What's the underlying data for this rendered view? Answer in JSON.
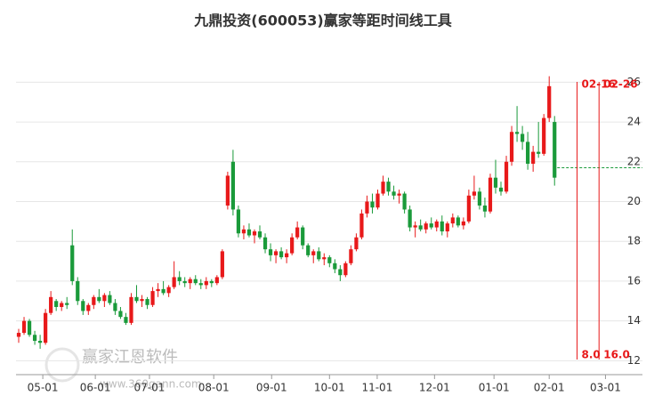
{
  "chart_data": {
    "type": "candlestick",
    "title": "九鼎投资(600053)赢家等距时间线工具",
    "up_color": "#e8191a",
    "down_color": "#1a9a3a",
    "open": [
      13.2,
      13.4,
      14.0,
      13.3,
      13.0,
      12.9,
      14.4,
      15.0,
      14.7,
      14.9,
      17.8,
      16.0,
      15.0,
      14.5,
      14.8,
      15.2,
      15.0,
      15.3,
      14.9,
      14.5,
      14.2,
      13.9,
      15.2,
      15.0,
      15.1,
      14.8,
      15.5,
      15.6,
      15.4,
      15.7,
      16.2,
      16.0,
      15.9,
      16.1,
      15.9,
      15.8,
      16.0,
      15.9,
      16.2,
      19.8,
      22.0,
      19.6,
      18.4,
      18.6,
      18.3,
      18.5,
      18.2,
      17.6,
      17.3,
      17.5,
      17.2,
      17.4,
      18.2,
      18.7,
      17.8,
      17.3,
      17.5,
      17.1,
      17.2,
      16.9,
      16.6,
      16.3,
      16.9,
      17.6,
      18.2,
      19.4,
      20.0,
      19.7,
      20.4,
      21.0,
      20.5,
      20.3,
      20.4,
      19.6,
      18.7,
      18.8,
      18.6,
      18.9,
      18.7,
      19.0,
      18.5,
      18.9,
      19.2,
      18.8,
      19.0,
      20.3,
      20.5,
      19.8,
      19.5,
      21.2,
      20.7,
      20.5,
      22.0,
      23.5,
      23.4,
      23.0,
      21.9,
      22.5,
      22.4,
      24.2,
      24.0
    ],
    "high": [
      13.6,
      14.2,
      14.1,
      13.5,
      13.3,
      14.6,
      15.5,
      15.1,
      15.0,
      15.2,
      18.6,
      16.2,
      15.1,
      14.9,
      15.3,
      15.6,
      15.4,
      15.5,
      15.1,
      14.7,
      14.4,
      15.4,
      15.8,
      15.3,
      15.2,
      15.7,
      15.9,
      16.0,
      15.8,
      17.0,
      16.5,
      16.2,
      16.2,
      16.3,
      16.1,
      16.2,
      16.1,
      16.3,
      17.6,
      21.5,
      22.6,
      19.8,
      18.8,
      18.9,
      18.6,
      18.8,
      18.4,
      17.9,
      17.6,
      17.7,
      17.6,
      18.4,
      19.0,
      18.8,
      17.9,
      17.6,
      17.7,
      17.4,
      17.3,
      17.1,
      16.8,
      17.0,
      17.8,
      18.4,
      19.6,
      20.3,
      20.4,
      20.6,
      21.3,
      21.2,
      20.8,
      20.6,
      20.5,
      19.8,
      19.0,
      19.1,
      19.0,
      19.2,
      19.1,
      19.3,
      19.0,
      19.4,
      19.3,
      19.2,
      20.6,
      21.3,
      20.7,
      20.2,
      21.4,
      22.1,
      21.0,
      22.3,
      23.8,
      24.8,
      23.8,
      23.5,
      22.8,
      24.0,
      24.4,
      26.3,
      24.3
    ],
    "low": [
      12.9,
      13.3,
      13.2,
      12.8,
      12.6,
      12.8,
      14.3,
      14.5,
      14.5,
      14.6,
      15.8,
      14.8,
      14.3,
      14.3,
      14.6,
      14.9,
      14.7,
      14.8,
      14.3,
      14.1,
      13.8,
      13.8,
      14.9,
      14.7,
      14.6,
      14.7,
      15.2,
      15.3,
      15.2,
      15.6,
      15.8,
      15.7,
      15.6,
      15.8,
      15.6,
      15.6,
      15.7,
      15.8,
      16.1,
      19.6,
      19.3,
      18.2,
      18.1,
      18.2,
      17.9,
      18.1,
      17.4,
      17.0,
      16.9,
      17.1,
      16.9,
      17.3,
      18.1,
      17.6,
      17.2,
      16.9,
      17.0,
      16.8,
      16.7,
      16.4,
      16.0,
      16.2,
      16.8,
      17.5,
      18.1,
      19.2,
      19.4,
      19.6,
      20.3,
      20.3,
      20.1,
      19.9,
      19.4,
      18.5,
      18.2,
      18.5,
      18.4,
      18.6,
      18.5,
      18.3,
      18.2,
      18.7,
      18.7,
      18.6,
      18.9,
      20.1,
      19.6,
      19.2,
      19.4,
      20.4,
      20.3,
      20.4,
      21.8,
      23.0,
      22.6,
      21.6,
      21.5,
      22.2,
      22.3,
      24.0,
      20.8
    ],
    "close": [
      13.4,
      14.0,
      13.3,
      13.0,
      12.9,
      14.4,
      15.2,
      14.7,
      14.9,
      14.8,
      16.0,
      15.0,
      14.5,
      14.8,
      15.2,
      15.0,
      15.3,
      14.9,
      14.5,
      14.2,
      13.9,
      15.2,
      15.0,
      15.1,
      14.8,
      15.5,
      15.6,
      15.4,
      15.7,
      16.2,
      16.0,
      15.9,
      16.1,
      15.9,
      15.8,
      16.0,
      15.9,
      16.2,
      17.5,
      21.3,
      19.6,
      18.4,
      18.6,
      18.3,
      18.5,
      18.2,
      17.6,
      17.3,
      17.5,
      17.2,
      17.4,
      18.2,
      18.7,
      17.8,
      17.3,
      17.5,
      17.1,
      17.2,
      16.9,
      16.6,
      16.3,
      16.9,
      17.6,
      18.2,
      19.4,
      20.0,
      19.7,
      20.4,
      21.0,
      20.5,
      20.3,
      20.4,
      19.6,
      18.7,
      18.8,
      18.6,
      18.9,
      18.7,
      19.0,
      18.5,
      18.9,
      19.2,
      18.8,
      19.0,
      20.3,
      20.5,
      19.8,
      19.5,
      21.2,
      20.7,
      20.5,
      22.0,
      23.5,
      23.4,
      23.0,
      21.9,
      22.5,
      22.4,
      24.2,
      25.8,
      21.2
    ],
    "xlim": [
      0,
      116.9
    ],
    "xticks": [
      {
        "value": 5.0,
        "label": "05-01"
      },
      {
        "value": 14.8,
        "label": "06-01"
      },
      {
        "value": 24.9,
        "label": "07-01"
      },
      {
        "value": 36.9,
        "label": "08-01"
      },
      {
        "value": 47.7,
        "label": "09-01"
      },
      {
        "value": 58.5,
        "label": "10-01"
      },
      {
        "value": 67.4,
        "label": "11-01"
      },
      {
        "value": 78.1,
        "label": "12-01"
      },
      {
        "value": 89.2,
        "label": "01-01"
      },
      {
        "value": 99.5,
        "label": "02-01"
      },
      {
        "value": 110.0,
        "label": "03-01"
      }
    ],
    "ylim": [
      11.3,
      27
    ],
    "yticks": [
      12,
      14,
      16,
      18,
      20,
      22,
      24,
      26
    ],
    "grid": true,
    "vlines": [
      {
        "x": 104.7,
        "top_label": "02-16",
        "bottom_label": "8.0",
        "color": "#e8191a"
      },
      {
        "x": 108.8,
        "top_label": "02-26",
        "bottom_label": "16.0",
        "color": "#e8191a"
      }
    ],
    "hline": {
      "value": 21.7,
      "color": "#1a9a3a"
    },
    "watermark": [
      "赢家江恩软件",
      "www.360gann.com"
    ]
  }
}
